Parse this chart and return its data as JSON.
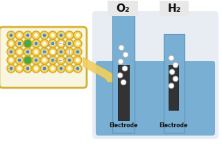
{
  "bg_color": "#ffffff",
  "container_bg": "#e8edf4",
  "container_border": "#cccccc",
  "liquid_color": "#7aafd4",
  "tube_color": "#7aafd4",
  "tube_border": "#5a90b8",
  "electrode_color": "#333333",
  "bubble_color": "#ffffff",
  "bubble_border": "#bbbbbb",
  "label_color": "#111111",
  "gas_label_O2": "O₂",
  "gas_label_H2": "H₂",
  "electrode_label": "Electrode",
  "gas_tab_color": "#e8e8e8",
  "panel_border": "#d4b030",
  "panel_fill": "#f8f5e0",
  "dot_gold_edge": "#d4a820",
  "dot_gold_fill": "#f0d060",
  "dot_center_fill": "#fdf8d0",
  "dot_blue": "#4488cc",
  "dot_green": "#44aa44",
  "dot_white": "#ffffff",
  "arrow_fill": "#f0d060",
  "arrow_edge": "#c8a820"
}
